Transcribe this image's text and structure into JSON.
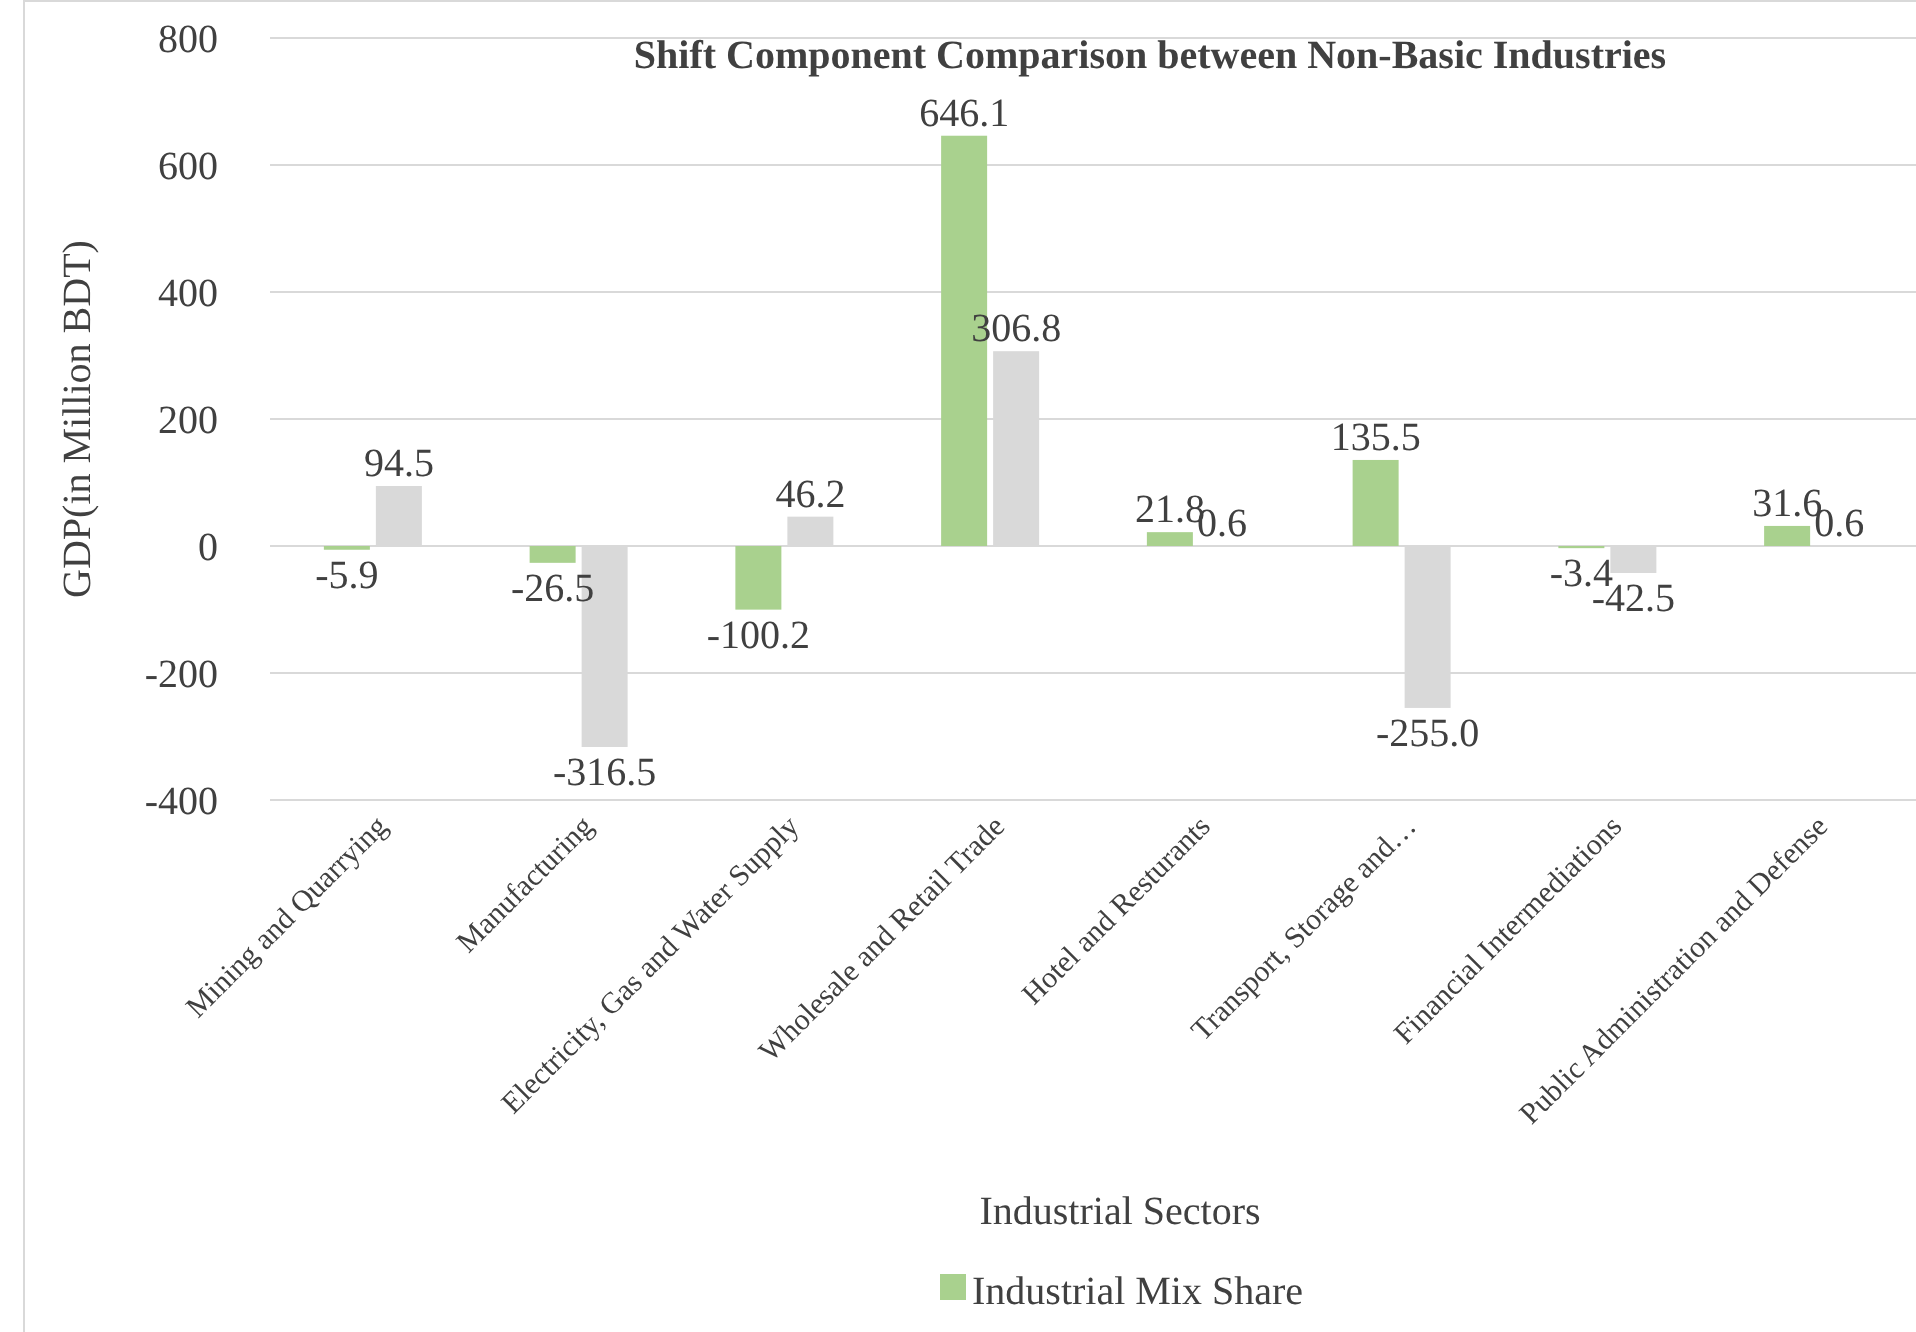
{
  "chart_data": {
    "type": "bar",
    "title": "Shift Component Comparison between Non-Basic Industries",
    "xlabel": "Industrial Sectors",
    "ylabel": "GDP(in Million BDT)",
    "categories": [
      "Mining and Quarrying",
      "Manufacturing",
      "Electricity, Gas and Water Supply",
      "Wholesale and Retail Trade",
      "Hotel and Resturants",
      "Transport, Storage and…",
      "Financial Intermediations",
      "Public Administration and Defense"
    ],
    "series": [
      {
        "name": "Industrial Mix Share",
        "color": "#a9d18e",
        "values": [
          -5.9,
          -26.5,
          -100.2,
          646.1,
          21.8,
          135.5,
          -3.4,
          31.6
        ]
      },
      {
        "color": "#d9d9d9",
        "values": [
          94.5,
          -316.5,
          46.2,
          306.8,
          0.6,
          -255.0,
          -42.5,
          0.6
        ],
        "value_labels": [
          "94.5",
          "-316.5",
          "46.2",
          "306.8",
          "0.6",
          "-255.0",
          "-42.5",
          "0.6"
        ]
      }
    ],
    "data_labels": true,
    "ylim": [
      -400,
      800
    ],
    "yticks": [
      -400,
      -200,
      0,
      200,
      400,
      600,
      800
    ],
    "grid": "y",
    "legend": "bottom left"
  }
}
